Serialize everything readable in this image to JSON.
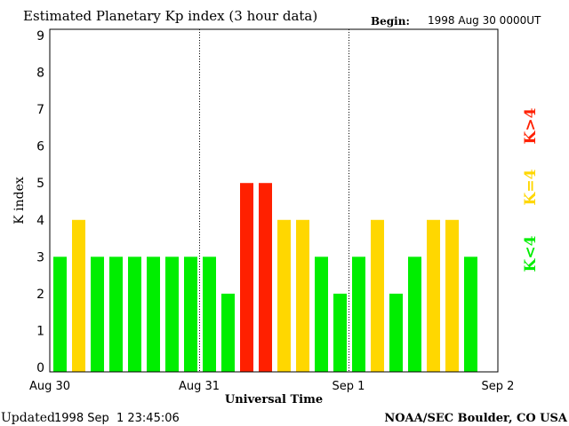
{
  "chart_data": {
    "type": "bar",
    "title": "Estimated Planetary Kp index (3 hour data)",
    "begin_label": "Begin:",
    "begin_value": "1998 Aug 30 0000UT",
    "xlabel": "Universal Time",
    "ylabel": "K index",
    "ylim": [
      0,
      9
    ],
    "yticks": [
      "0",
      "1",
      "2",
      "3",
      "4",
      "5",
      "6",
      "7",
      "8",
      "9"
    ],
    "xticks": [
      "Aug 30",
      "Aug 31",
      "Sep 1",
      "Sep 2"
    ],
    "slots_per_day": 8,
    "values": [
      3,
      4,
      3,
      3,
      3,
      3,
      3,
      3,
      3,
      2,
      5,
      5,
      4,
      4,
      3,
      2,
      3,
      4,
      2,
      3,
      4,
      4,
      3
    ],
    "colors": {
      "low": "#00ee00",
      "mid": "#ffd700",
      "high": "#ff2000"
    },
    "legend": {
      "high": "K>4",
      "mid": "K=4",
      "low": "K<4"
    },
    "updated_label": "Updated",
    "updated_value": "1998 Sep  1 23:45:06",
    "credit": "NOAA/SEC Boulder, CO USA"
  }
}
